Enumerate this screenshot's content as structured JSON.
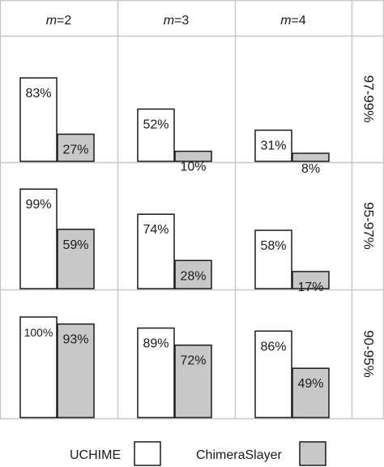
{
  "chart_data": {
    "type": "bar",
    "columns": [
      {
        "prefix": "m",
        "value": "=2"
      },
      {
        "prefix": "m",
        "value": "=3"
      },
      {
        "prefix": "m",
        "value": "=4"
      }
    ],
    "rows": [
      "97-99%",
      "95-97%",
      "90-95%"
    ],
    "series": [
      {
        "name": "UCHIME",
        "color": "#ffffff"
      },
      {
        "name": "ChimeraSlayer",
        "color": "#c8c8c8"
      }
    ],
    "ylim": [
      0,
      100
    ],
    "cells": [
      [
        {
          "values": [
            83,
            27
          ],
          "labels": [
            "83%",
            "27%"
          ]
        },
        {
          "values": [
            52,
            10
          ],
          "labels": [
            "52%",
            "10%"
          ]
        },
        {
          "values": [
            31,
            8
          ],
          "labels": [
            "31%",
            "8%"
          ]
        }
      ],
      [
        {
          "values": [
            99,
            59
          ],
          "labels": [
            "99%",
            "59%"
          ]
        },
        {
          "values": [
            74,
            28
          ],
          "labels": [
            "74%",
            "28%"
          ]
        },
        {
          "values": [
            58,
            17
          ],
          "labels": [
            "58%",
            "17%"
          ]
        }
      ],
      [
        {
          "values": [
            100,
            93
          ],
          "labels": [
            "100%",
            "93%"
          ]
        },
        {
          "values": [
            89,
            72
          ],
          "labels": [
            "89%",
            "72%"
          ]
        },
        {
          "values": [
            86,
            49
          ],
          "labels": [
            "86%",
            "49%"
          ]
        }
      ]
    ],
    "legend_position": "bottom"
  }
}
